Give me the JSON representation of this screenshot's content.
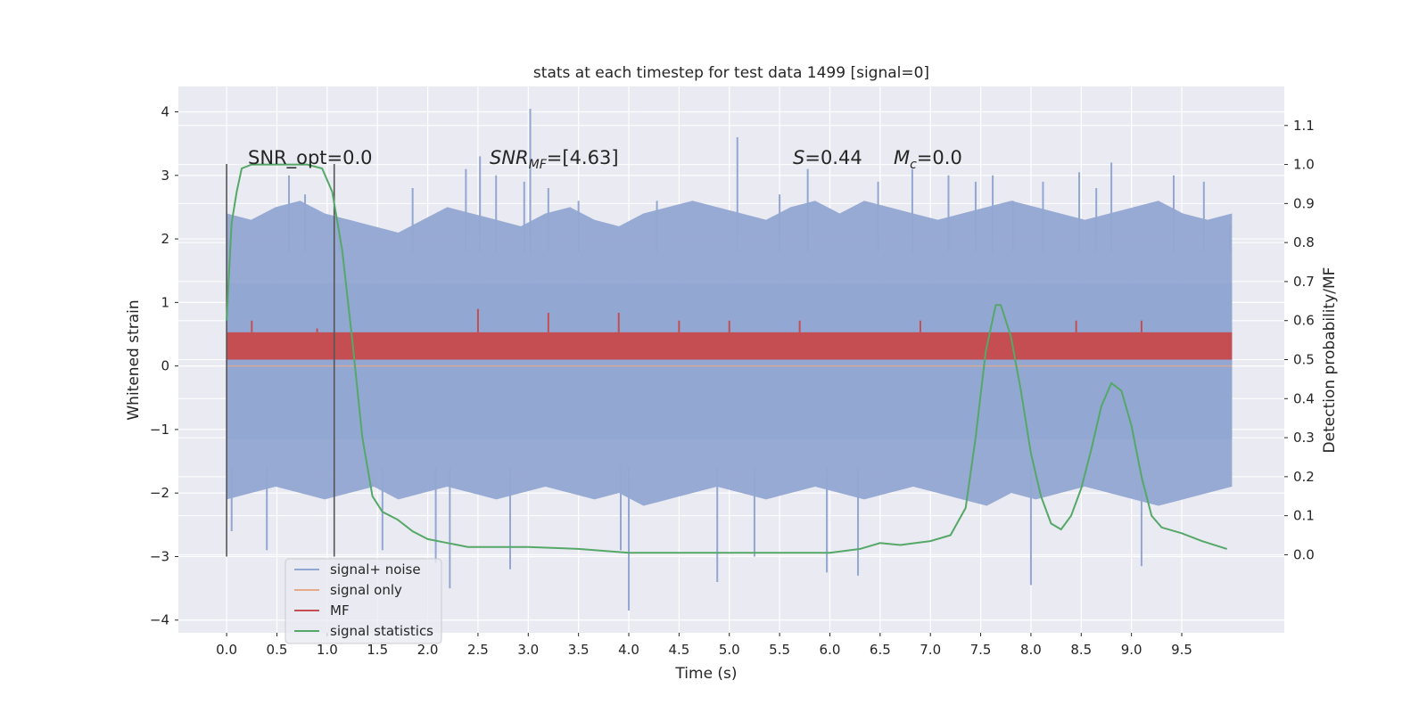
{
  "chart_data": {
    "type": "line",
    "title": "stats at each timestep for test data 1499 [signal=0]",
    "xlabel": "Time (s)",
    "ylabel": "Whitened strain",
    "y2label": "Detection probability/MF",
    "xlim": [
      -0.48,
      10.52
    ],
    "ylim": [
      -4.2,
      4.4
    ],
    "y2lim": [
      -0.2,
      1.2
    ],
    "x_ticks": [
      "0.0",
      "0.5",
      "1.0",
      "1.5",
      "2.0",
      "2.5",
      "3.0",
      "3.5",
      "4.0",
      "4.5",
      "5.0",
      "5.5",
      "6.0",
      "6.5",
      "7.0",
      "7.5",
      "8.0",
      "8.5",
      "9.0",
      "9.5"
    ],
    "y_ticks": [
      "4",
      "3",
      "2",
      "1",
      "0",
      "−1",
      "−2",
      "−3",
      "−4"
    ],
    "y2_ticks": [
      "1.1",
      "1.0",
      "0.9",
      "0.8",
      "0.7",
      "0.6",
      "0.5",
      "0.4",
      "0.3",
      "0.2",
      "0.1",
      "0.0"
    ],
    "grid": true,
    "legend_position": "lower-left",
    "annotations": {
      "snr_opt": "SNR_opt=0.0",
      "snr_mf_base": "SNR",
      "snr_mf_sub": "MF",
      "snr_mf_value": "=[4.63]",
      "s_label": "S",
      "s_value": "=0.44",
      "mc_base": "M",
      "mc_sub": "c",
      "mc_value": "=0.0"
    },
    "window_markers": {
      "x": [
        0.0,
        1.07
      ],
      "y_top": 3.18,
      "y_bottom": -3.0
    },
    "series": [
      {
        "name": "signal+ noise",
        "axis": "left",
        "color": "#92a7d1",
        "x_range": [
          0.0,
          10.0
        ],
        "envelope_upper": [
          2.4,
          2.3,
          2.5,
          2.6,
          2.4,
          2.3,
          2.2,
          2.1,
          2.3,
          2.5,
          2.4,
          2.3,
          2.2,
          2.4,
          2.5,
          2.3,
          2.2,
          2.4,
          2.5,
          2.6,
          2.5,
          2.4,
          2.3,
          2.5,
          2.6,
          2.4,
          2.6,
          2.5,
          2.4,
          2.3,
          2.4,
          2.5,
          2.6,
          2.5,
          2.4,
          2.3,
          2.4,
          2.5,
          2.6,
          2.4,
          2.3,
          2.4
        ],
        "envelope_lower": [
          -2.1,
          -2.0,
          -1.9,
          -2.0,
          -2.1,
          -2.0,
          -1.9,
          -2.1,
          -2.0,
          -1.9,
          -2.0,
          -2.1,
          -2.0,
          -1.9,
          -2.0,
          -2.1,
          -2.0,
          -2.2,
          -2.1,
          -2.0,
          -1.9,
          -2.0,
          -2.1,
          -2.0,
          -1.9,
          -2.0,
          -2.1,
          -2.0,
          -1.9,
          -2.0,
          -2.1,
          -2.2,
          -2.0,
          -2.1,
          -2.0,
          -1.9,
          -2.0,
          -2.1,
          -2.2,
          -2.1,
          -2.0,
          -1.9
        ],
        "spikes": [
          [
            0.02,
            2.0
          ],
          [
            0.05,
            -2.6
          ],
          [
            0.4,
            -2.9
          ],
          [
            0.62,
            3.0
          ],
          [
            0.78,
            2.7
          ],
          [
            1.12,
            2.3
          ],
          [
            1.55,
            -2.9
          ],
          [
            1.85,
            2.8
          ],
          [
            2.08,
            -3.1
          ],
          [
            2.22,
            -3.5
          ],
          [
            2.38,
            3.1
          ],
          [
            2.52,
            3.3
          ],
          [
            2.68,
            3.0
          ],
          [
            2.82,
            -3.2
          ],
          [
            2.96,
            2.9
          ],
          [
            3.02,
            4.05
          ],
          [
            3.2,
            2.8
          ],
          [
            3.5,
            2.6
          ],
          [
            3.92,
            -2.9
          ],
          [
            4.0,
            -3.85
          ],
          [
            4.28,
            2.6
          ],
          [
            4.88,
            -3.4
          ],
          [
            5.08,
            3.6
          ],
          [
            5.25,
            -3.0
          ],
          [
            5.5,
            2.7
          ],
          [
            5.78,
            3.1
          ],
          [
            5.97,
            -3.25
          ],
          [
            6.28,
            -3.3
          ],
          [
            6.48,
            2.9
          ],
          [
            6.82,
            3.1
          ],
          [
            7.18,
            3.0
          ],
          [
            7.45,
            2.9
          ],
          [
            7.62,
            3.0
          ],
          [
            7.82,
            2.6
          ],
          [
            8.0,
            -3.45
          ],
          [
            8.12,
            2.9
          ],
          [
            8.48,
            3.05
          ],
          [
            8.65,
            2.8
          ],
          [
            8.8,
            3.2
          ],
          [
            9.1,
            -3.15
          ],
          [
            9.42,
            3.0
          ],
          [
            9.72,
            2.9
          ],
          [
            9.98,
            2.2
          ]
        ]
      },
      {
        "name": "signal only",
        "axis": "left",
        "color": "#e8a98a",
        "x": [
          0.0,
          10.0
        ],
        "y": [
          0.0,
          0.0
        ]
      },
      {
        "name": "MF",
        "axis": "right",
        "color": "#c44e52",
        "x_range": [
          0.0,
          10.0
        ],
        "band": [
          0.5,
          0.57
        ],
        "spikes": [
          [
            0.25,
            0.6
          ],
          [
            0.9,
            0.58
          ],
          [
            2.5,
            0.63
          ],
          [
            3.2,
            0.62
          ],
          [
            3.9,
            0.62
          ],
          [
            4.5,
            0.6
          ],
          [
            5.0,
            0.6
          ],
          [
            5.7,
            0.6
          ],
          [
            6.9,
            0.6
          ],
          [
            8.45,
            0.6
          ],
          [
            9.1,
            0.6
          ]
        ]
      },
      {
        "name": "signal statistics",
        "axis": "right",
        "color": "#55a868",
        "x": [
          0.0,
          0.05,
          0.1,
          0.15,
          0.25,
          0.4,
          0.6,
          0.8,
          0.95,
          1.05,
          1.15,
          1.25,
          1.35,
          1.45,
          1.55,
          1.7,
          1.85,
          2.0,
          2.2,
          2.4,
          2.6,
          2.8,
          3.0,
          3.5,
          4.0,
          4.5,
          5.0,
          5.5,
          6.0,
          6.3,
          6.5,
          6.7,
          7.0,
          7.2,
          7.35,
          7.45,
          7.55,
          7.65,
          7.7,
          7.8,
          7.9,
          8.0,
          8.1,
          8.2,
          8.3,
          8.4,
          8.5,
          8.6,
          8.7,
          8.8,
          8.9,
          9.0,
          9.1,
          9.2,
          9.3,
          9.5,
          9.7,
          9.95
        ],
        "y": [
          0.6,
          0.85,
          0.93,
          0.99,
          1.0,
          1.0,
          1.0,
          1.0,
          0.99,
          0.93,
          0.78,
          0.55,
          0.3,
          0.15,
          0.11,
          0.09,
          0.06,
          0.04,
          0.03,
          0.02,
          0.02,
          0.02,
          0.02,
          0.015,
          0.005,
          0.005,
          0.005,
          0.005,
          0.005,
          0.015,
          0.03,
          0.025,
          0.035,
          0.05,
          0.12,
          0.3,
          0.52,
          0.64,
          0.64,
          0.56,
          0.42,
          0.26,
          0.15,
          0.08,
          0.065,
          0.1,
          0.17,
          0.27,
          0.38,
          0.44,
          0.42,
          0.33,
          0.2,
          0.1,
          0.07,
          0.055,
          0.035,
          0.015
        ]
      }
    ]
  }
}
